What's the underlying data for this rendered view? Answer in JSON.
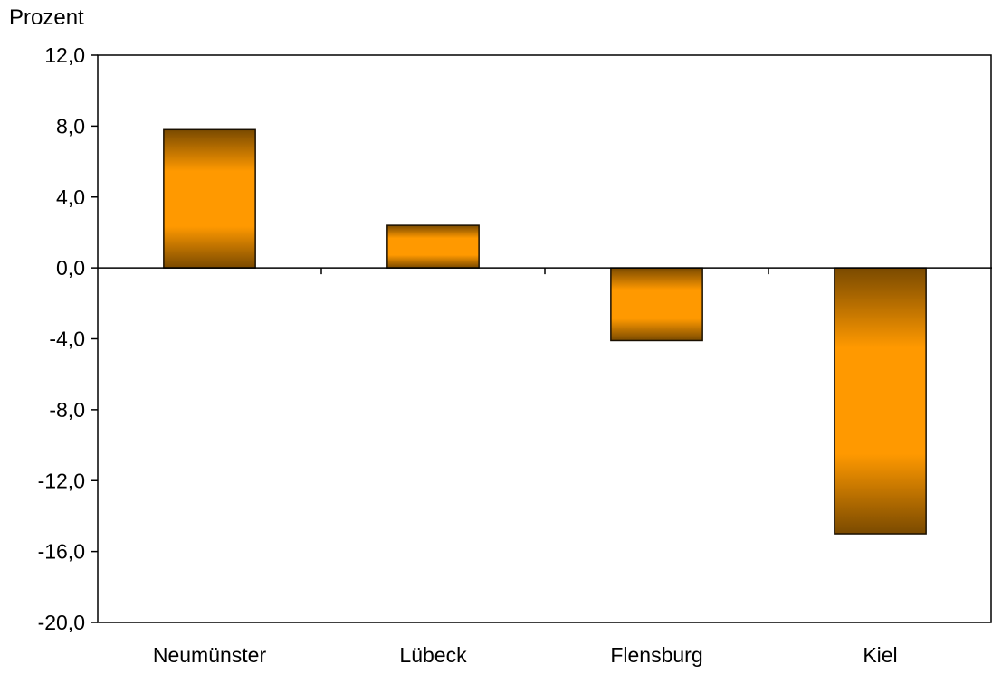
{
  "chart_data": {
    "type": "bar",
    "ylabel": "Prozent",
    "categories": [
      "Neumünster",
      "Lübeck",
      "Flensburg",
      "Kiel"
    ],
    "values": [
      7.8,
      2.4,
      -4.1,
      -15.0
    ],
    "ylim": [
      -20,
      12
    ],
    "yticks": [
      12,
      8,
      4,
      0,
      -4,
      -8,
      -12,
      -16,
      -20
    ],
    "ytick_labels": [
      "12,0",
      "8,0",
      "4,0",
      "0,0",
      "-4,0",
      "-8,0",
      "-12,0",
      "-16,0",
      "-20,0"
    ],
    "grid": false,
    "legend": "none",
    "colors": {
      "bar_center": "#ff9900",
      "bar_edge": "#7a4a00",
      "bar_outline": "#1a1000",
      "axis": "#000000"
    }
  }
}
